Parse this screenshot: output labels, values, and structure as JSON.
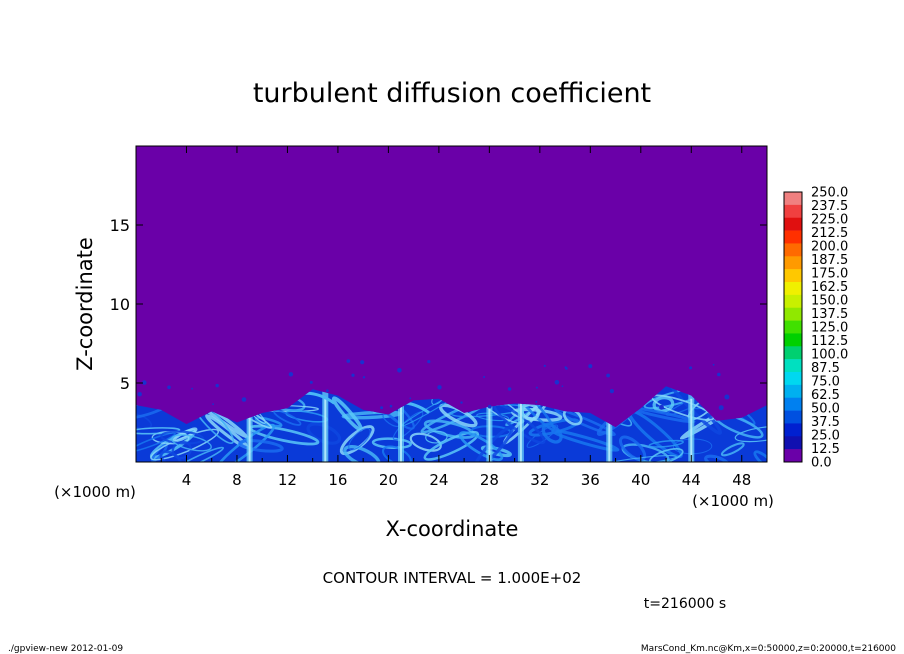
{
  "chart_data": {
    "type": "heatmap",
    "title": "turbulent diffusion coefficient",
    "xlabel": "X-coordinate",
    "ylabel": "Z-coordinate",
    "x_unit_left": "(×1000 m)",
    "x_unit_right": "(×1000 m)",
    "xlim": [
      0,
      50
    ],
    "ylim": [
      0,
      20
    ],
    "x_ticks": [
      4,
      8,
      12,
      16,
      20,
      24,
      28,
      32,
      36,
      40,
      44,
      48
    ],
    "y_ticks": [
      5,
      10,
      15
    ],
    "contour_interval": "CONTOUR INTERVAL = 1.000E+02",
    "time_label": "t=216000 s",
    "colorbar": {
      "levels": [
        "250.0",
        "237.5",
        "225.0",
        "212.5",
        "200.0",
        "187.5",
        "175.0",
        "162.5",
        "150.0",
        "137.5",
        "125.0",
        "112.5",
        "100.0",
        "87.5",
        "75.0",
        "62.5",
        "50.0",
        "37.5",
        "25.0",
        "12.5",
        "0.0"
      ],
      "colors": [
        "#f08080",
        "#f04040",
        "#e01010",
        "#ff3000",
        "#ff6a00",
        "#ff9a00",
        "#ffc800",
        "#f0f000",
        "#c8f000",
        "#90e800",
        "#40e000",
        "#00d000",
        "#00d070",
        "#00e0c0",
        "#00d8f0",
        "#00b0f0",
        "#0080f0",
        "#0050e0",
        "#0020d0",
        "#1010b0",
        "#6a00a8"
      ]
    },
    "background_value_color": "#6a00a8",
    "turbulent_layer_top_km": [
      3.6,
      3.3,
      2.4,
      3.2,
      2.5,
      3.1,
      3.4,
      4.6,
      4.2,
      3.3,
      3.0,
      3.9,
      4.0,
      3.1,
      3.5,
      3.7,
      3.6,
      3.2,
      3.1,
      2.2,
      3.4,
      4.8,
      4.2,
      2.6,
      2.8,
      3.6
    ]
  },
  "footer": {
    "left": "./gpview-new  2012-01-09",
    "right": "MarsCond_Km.nc@Km,x=0:50000,z=0:20000,t=216000"
  }
}
